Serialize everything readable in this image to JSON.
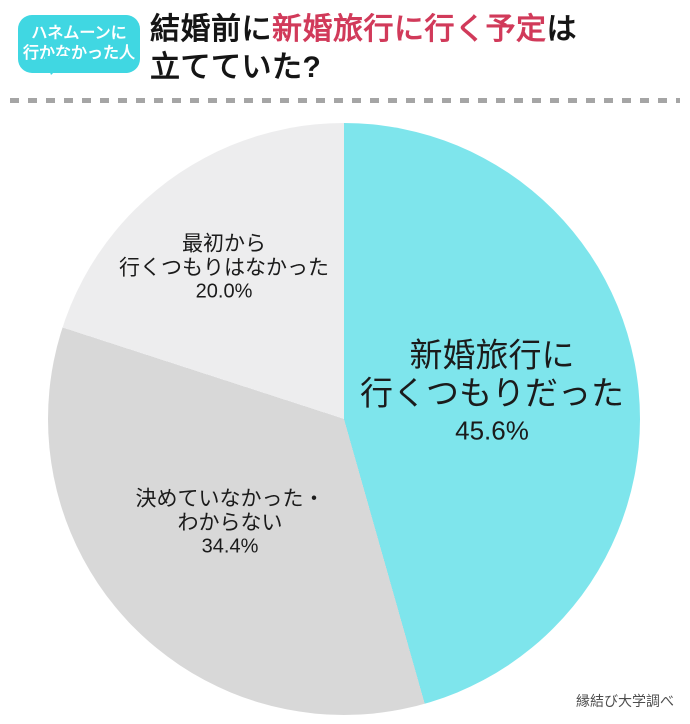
{
  "badge": {
    "line1": "ハネムーンに",
    "line2": "行かなかった人",
    "color": "#40d7e2"
  },
  "title": {
    "part1": "結婚前に",
    "highlight": "新婚旅行に行く予定",
    "part2": "は",
    "line2": "立てていた?",
    "highlight_color": "#d13a5a"
  },
  "source": "縁結び大学調べ",
  "chart_data": {
    "type": "pie",
    "title": "結婚前に新婚旅行に行く予定は立てていた?(ハネムーンに行かなかった人)",
    "start_angle_deg": 0,
    "direction": "clockwise",
    "legend_position": "none",
    "slices": [
      {
        "label": "新婚旅行に行くつもりだった",
        "label_lines": [
          "新婚旅行に",
          "行くつもりだった"
        ],
        "pct_label": "45.6%",
        "value": 45.6,
        "color": "#7ee5ec"
      },
      {
        "label": "決めていなかった・わからない",
        "label_lines": [
          "決めていなかった・",
          "わからない"
        ],
        "pct_label": "34.4%",
        "value": 34.4,
        "color": "#d8d8d8"
      },
      {
        "label": "最初から行くつもりはなかった",
        "label_lines": [
          "最初から",
          "行くつもりはなかった"
        ],
        "pct_label": "20.0%",
        "value": 20.0,
        "color": "#ededee"
      }
    ]
  }
}
